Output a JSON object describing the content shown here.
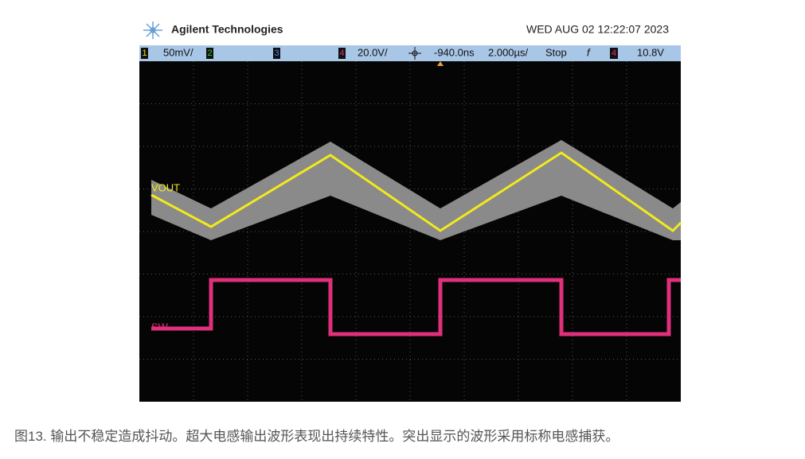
{
  "header": {
    "brand": "Agilent Technologies",
    "datetime": "WED AUG 02 12:22:07 2023"
  },
  "status_bar": {
    "ch1": "1",
    "ch1_scale": "50mV/",
    "ch2": "2",
    "ch3": "3",
    "ch4": "4",
    "ch4_scale": "20.0V/",
    "delay": "-940.0ns",
    "timebase": "2.000µs/",
    "run_state": "Stop",
    "trigger_slope": "f",
    "trigger_ch": "4",
    "trigger_level": "10.8V"
  },
  "traces": {
    "vout": "VOUT",
    "sw": "SW"
  },
  "caption": "图13. 输出不稳定造成抖动。超大电感输出波形表现出持续特性。突出显示的波形采用标称电感捕获。"
}
